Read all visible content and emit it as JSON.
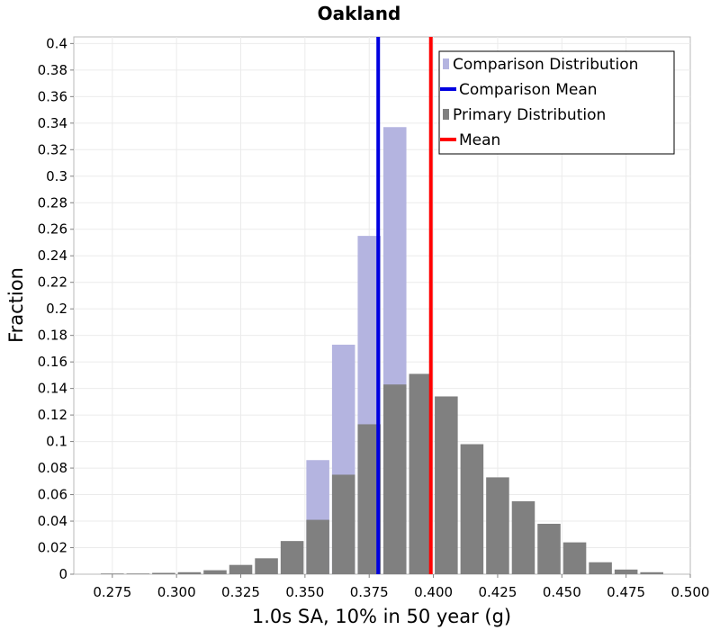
{
  "chart_data": {
    "type": "bar",
    "title": "Oakland",
    "xlabel": "1.0s SA, 10% in 50 year (g)",
    "ylabel": "Fraction",
    "xlim": [
      0.26,
      0.5
    ],
    "ylim": [
      0,
      0.405
    ],
    "bin_width": 0.01,
    "x_ticks": [
      "0.275",
      "0.300",
      "0.325",
      "0.350",
      "0.375",
      "0.400",
      "0.425",
      "0.450",
      "0.475",
      "0.500"
    ],
    "y_ticks": [
      "0",
      "0.02",
      "0.04",
      "0.06",
      "0.08",
      "0.1",
      "0.12",
      "0.14",
      "0.16",
      "0.18",
      "0.2",
      "0.22",
      "0.24",
      "0.26",
      "0.28",
      "0.3",
      "0.32",
      "0.34",
      "0.36",
      "0.38",
      "0.4"
    ],
    "grid": true,
    "legend_position": "top-right",
    "series": [
      {
        "name": "Comparison Distribution",
        "color": "#b4b4e0",
        "bin_centers": [
          0.355,
          0.365,
          0.375,
          0.385
        ],
        "values": [
          0.086,
          0.173,
          0.255,
          0.337
        ]
      },
      {
        "name": "Primary Distribution",
        "color": "#808080",
        "bin_centers": [
          0.275,
          0.285,
          0.295,
          0.305,
          0.315,
          0.325,
          0.335,
          0.345,
          0.355,
          0.365,
          0.375,
          0.385,
          0.395,
          0.405,
          0.415,
          0.425,
          0.435,
          0.445,
          0.455,
          0.465,
          0.475,
          0.485
        ],
        "values": [
          0.0005,
          0.0005,
          0.001,
          0.0015,
          0.003,
          0.007,
          0.012,
          0.025,
          0.041,
          0.075,
          0.113,
          0.143,
          0.151,
          0.134,
          0.098,
          0.073,
          0.055,
          0.038,
          0.024,
          0.009,
          0.0035,
          0.0015
        ]
      }
    ],
    "lines": [
      {
        "name": "Comparison Mean",
        "color": "#0000e0",
        "x": 0.3785
      },
      {
        "name": "Mean",
        "color": "#ff0000",
        "x": 0.399
      }
    ],
    "legend": [
      {
        "label": "Comparison Distribution",
        "kind": "box",
        "color": "#b4b4e0"
      },
      {
        "label": "Comparison Mean",
        "kind": "line",
        "color": "#0000e0"
      },
      {
        "label": "Primary Distribution",
        "kind": "box",
        "color": "#808080"
      },
      {
        "label": "Mean",
        "kind": "line",
        "color": "#ff0000"
      }
    ]
  }
}
